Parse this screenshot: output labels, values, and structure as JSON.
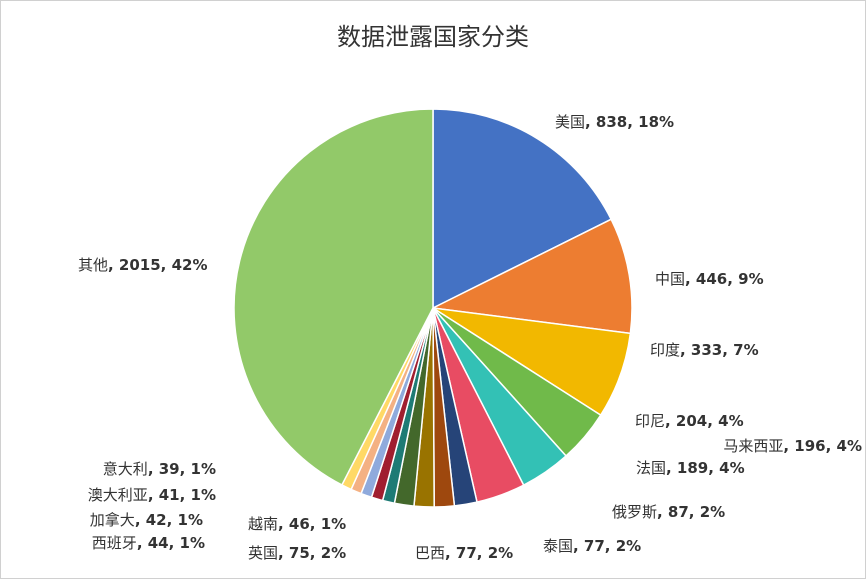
{
  "chart_data": {
    "type": "pie",
    "title": "数据泄露国家分类",
    "categories": [
      "美国",
      "中国",
      "印度",
      "印尼",
      "马来西亚",
      "法国",
      "俄罗斯",
      "泰国",
      "巴西",
      "英国",
      "越南",
      "西班牙",
      "加拿大",
      "澳大利亚",
      "意大利",
      "其他"
    ],
    "values": [
      838,
      446,
      333,
      204,
      196,
      189,
      87,
      77,
      77,
      75,
      46,
      44,
      42,
      41,
      39,
      2015
    ],
    "value_labels": [
      ", 838, 18%",
      ", 446, 9%",
      ", 333, 7%",
      ", 204, 4%",
      ", 196, 4%",
      ", 189, 4%",
      ", 87, 2%",
      ", 77, 2%",
      ", 77, 2%",
      ", 75, 2%",
      ", 46, 1%",
      ", 44, 1%",
      ", 42, 1%",
      ", 41, 1%",
      ", 39, 1%",
      ", 2015, 42%"
    ],
    "colors": [
      "#4472c4",
      "#ed7d31",
      "#f2b800",
      "#70ba4a",
      "#33c1b5",
      "#e84c63",
      "#264478",
      "#9e480e",
      "#997300",
      "#43682b",
      "#1e7b75",
      "#a01e2f",
      "#8faadc",
      "#f4b183",
      "#ffd966",
      "#92c969"
    ]
  }
}
